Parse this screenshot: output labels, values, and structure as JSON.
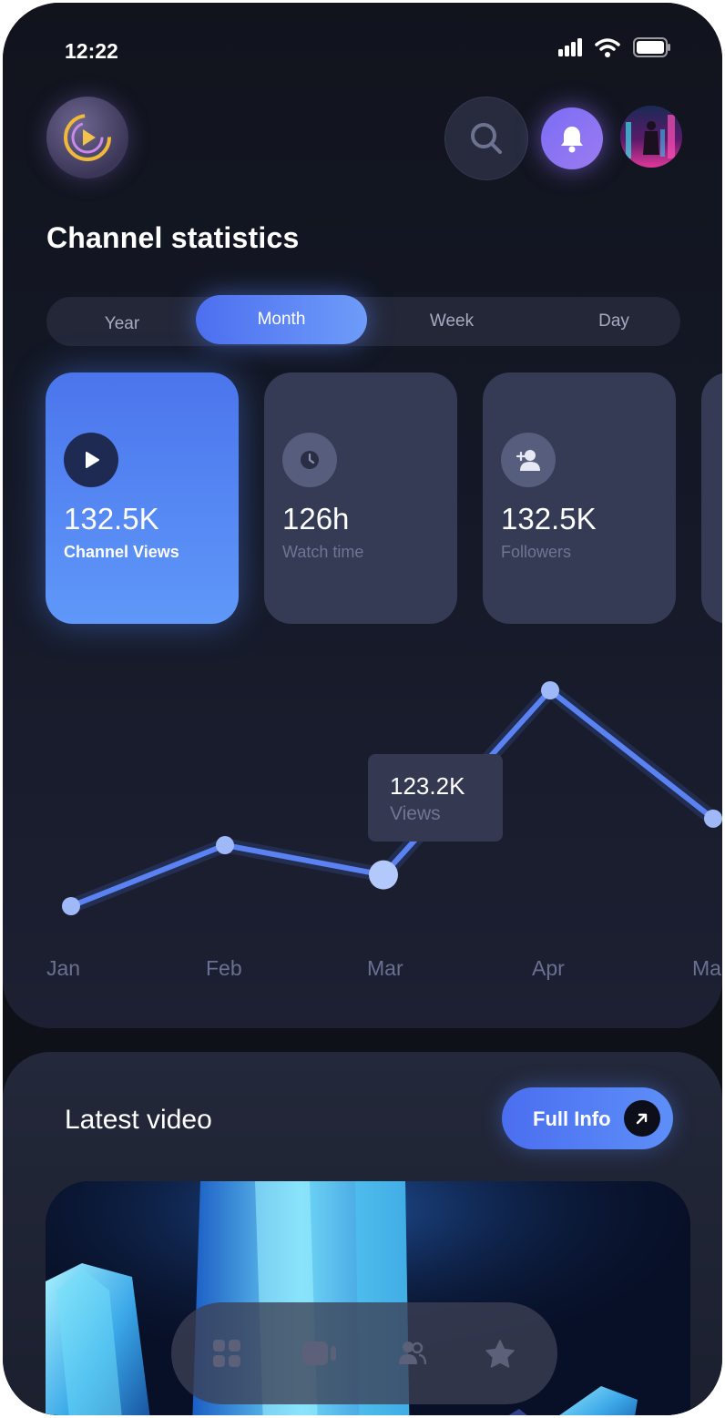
{
  "status_bar": {
    "time": "12:22",
    "icons": [
      "signal-icon",
      "wifi-icon",
      "battery-icon"
    ]
  },
  "header": {
    "logo_icon": "play-logo-icon",
    "search_icon": "search-icon",
    "bell_icon": "bell-icon",
    "avatar": "user-avatar"
  },
  "page": {
    "title": "Channel statistics"
  },
  "tabs": [
    {
      "label": "Year",
      "active": false
    },
    {
      "label": "Month",
      "active": true
    },
    {
      "label": "Week",
      "active": false
    },
    {
      "label": "Day",
      "active": false
    }
  ],
  "stat_cards": [
    {
      "value": "132.5K",
      "label": "Channel Views",
      "icon": "play-icon",
      "active": true
    },
    {
      "value": "126h",
      "label": "Watch time",
      "icon": "clock-icon",
      "active": false
    },
    {
      "value": "132.5K",
      "label": "Followers",
      "icon": "add-user-icon",
      "active": false
    }
  ],
  "chart_data": {
    "type": "line",
    "x": [
      "Jan",
      "Feb",
      "Mar",
      "Apr",
      "May"
    ],
    "visible_x_labels": [
      "Jan",
      "Feb",
      "Mar",
      "Apr",
      "Ma"
    ],
    "series": [
      {
        "values": [
          72,
          111,
          92,
          210,
          128
        ]
      }
    ],
    "highlight": {
      "category": "Mar",
      "value": "123.2K",
      "label": "Views"
    }
  },
  "latest_video": {
    "title": "Latest video",
    "button_label": "Full Info"
  },
  "bottom_nav": [
    {
      "icon": "grid-icon"
    },
    {
      "icon": "video-camera-icon"
    },
    {
      "icon": "users-icon"
    },
    {
      "icon": "star-icon"
    }
  ],
  "colors": {
    "accent": "#5b86f6",
    "background": "#0f1119",
    "card": "#353a55",
    "bell": "#8a74f3"
  }
}
